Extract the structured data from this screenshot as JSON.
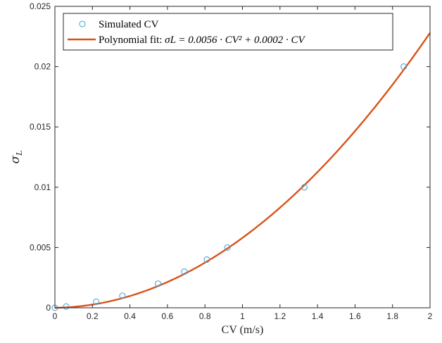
{
  "chart_data": {
    "type": "scatter",
    "xlabel": "CV (m/s)",
    "ylabel_main": "σ",
    "ylabel_sub": "L",
    "xlim": [
      0,
      2
    ],
    "ylim": [
      0,
      0.025
    ],
    "x_ticks": [
      0,
      0.2,
      0.4,
      0.6,
      0.8,
      1,
      1.2,
      1.4,
      1.6,
      1.8,
      2
    ],
    "x_tick_labels": [
      "0",
      "0.2",
      "0.4",
      "0.6",
      "0.8",
      "1",
      "1.2",
      "1.4",
      "1.6",
      "1.8",
      "2"
    ],
    "y_ticks": [
      0,
      0.005,
      0.01,
      0.015,
      0.02,
      0.025
    ],
    "y_tick_labels": [
      "0",
      "0.005",
      "0.01",
      "0.015",
      "0.02",
      "0.025"
    ],
    "grid": false,
    "legend_position": "top-left",
    "series": [
      {
        "name": "Simulated CV",
        "kind": "markers",
        "marker": "circle-open",
        "color": "#4ba5d8",
        "x": [
          0,
          0.06,
          0.22,
          0.36,
          0.55,
          0.69,
          0.81,
          0.92,
          1.33,
          1.86
        ],
        "y": [
          0,
          0.0001,
          0.0005,
          0.001,
          0.002,
          0.003,
          0.004,
          0.005,
          0.01,
          0.02
        ]
      },
      {
        "name": "Polynomial fit: σL = 0.0056 · CV² + 0.0002 · CV",
        "legend_prefix": "Polynomial fit: ",
        "legend_formula": "σL = 0.0056 · CV² + 0.0002 · CV",
        "kind": "line",
        "color": "#d95319",
        "coefficients": {
          "a2": 0.0056,
          "a1": 0.0002,
          "a0": 0
        }
      }
    ]
  }
}
